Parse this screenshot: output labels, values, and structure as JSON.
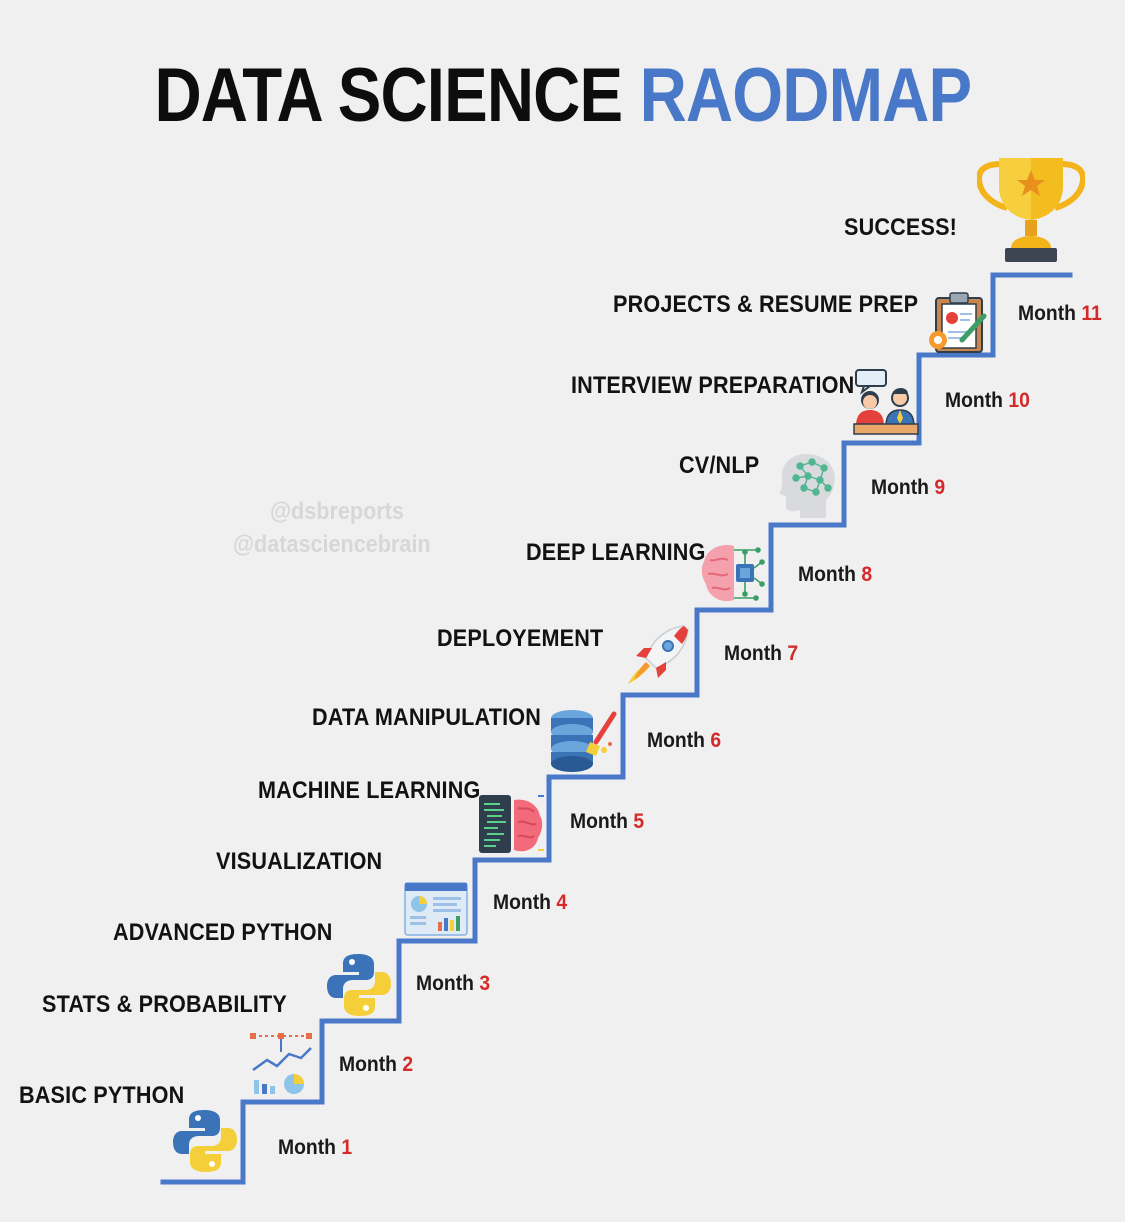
{
  "title": {
    "main": "DATA SCIENCE",
    "accent": "RAODMAP"
  },
  "watermarks": [
    "@dsbreports",
    "@datasciencebrain"
  ],
  "success_label": "SUCCESS!",
  "steps": [
    {
      "label": "BASIC PYTHON",
      "month_word": "Month",
      "month_num": "1",
      "icon": "python-icon"
    },
    {
      "label": "STATS & PROBABILITY",
      "month_word": "Month",
      "month_num": "2",
      "icon": "stats-chart-icon"
    },
    {
      "label": "ADVANCED PYTHON",
      "month_word": "Month",
      "month_num": "3",
      "icon": "python-icon"
    },
    {
      "label": "VISUALIZATION",
      "month_word": "Month",
      "month_num": "4",
      "icon": "dashboard-icon"
    },
    {
      "label": "MACHINE LEARNING",
      "month_word": "Month",
      "month_num": "5",
      "icon": "code-brain-icon"
    },
    {
      "label": "DATA MANIPULATION",
      "month_word": "Month",
      "month_num": "6",
      "icon": "database-brush-icon"
    },
    {
      "label": "DEPLOYEMENT",
      "month_word": "Month",
      "month_num": "7",
      "icon": "rocket-icon"
    },
    {
      "label": "DEEP LEARNING",
      "month_word": "Month",
      "month_num": "8",
      "icon": "circuit-brain-icon"
    },
    {
      "label": "CV/NLP",
      "month_word": "Month",
      "month_num": "9",
      "icon": "head-network-icon"
    },
    {
      "label": "INTERVIEW PREPARATION",
      "month_word": "Month",
      "month_num": "10",
      "icon": "interview-icon"
    },
    {
      "label": "PROJECTS & RESUME PREP",
      "month_word": "Month",
      "month_num": "11",
      "icon": "clipboard-icon"
    }
  ],
  "colors": {
    "accent": "#4a78c9",
    "month_number": "#d42a2a",
    "stairs": "#4a78c9",
    "trophy": "#f2b41a"
  }
}
